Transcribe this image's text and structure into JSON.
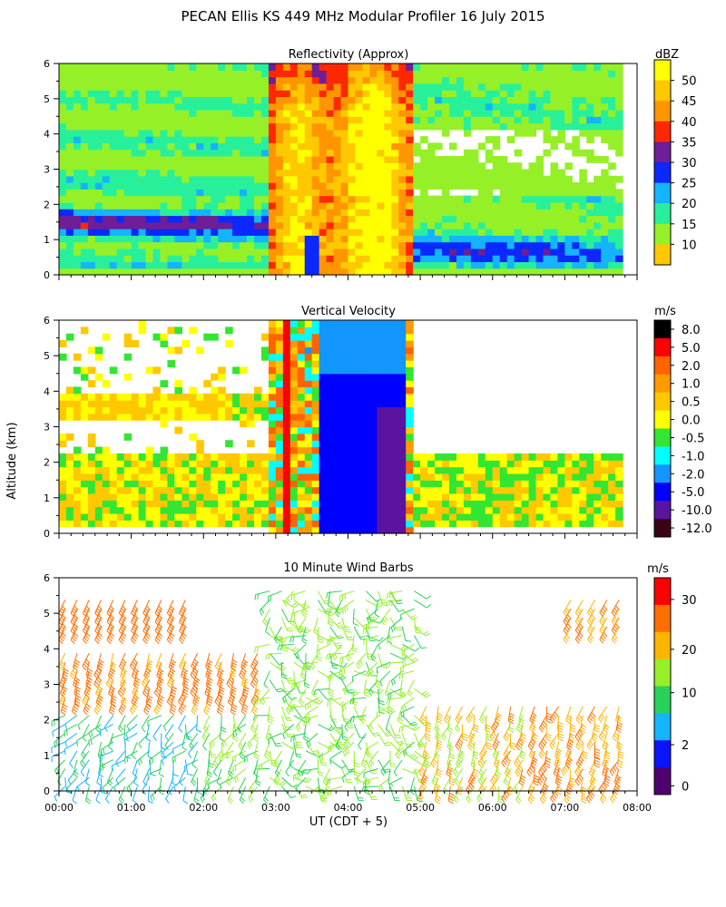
{
  "figure": {
    "title": "PECAN Ellis KS 449 MHz Modular Profiler 16 July 2015",
    "ylabel": "Altitude (km)",
    "xlabel": "UT  (CDT + 5)"
  },
  "chart_data": [
    {
      "type": "heatmap",
      "title": "Reflectivity (Approx)",
      "ylabel": "Altitude (km)",
      "y_ticks": [
        0,
        1,
        2,
        3,
        4,
        5,
        6
      ],
      "ylim": [
        0,
        6
      ],
      "colorbar": {
        "unit": "dBZ",
        "labels": [
          "50",
          "45",
          "40",
          "35",
          "30",
          "25",
          "20",
          "15",
          "10"
        ],
        "colors": [
          "#ffff00",
          "#ffc800",
          "#ff9600",
          "#ff2800",
          "#6e1e96",
          "#0a28ff",
          "#14b4ff",
          "#28f09a",
          "#96f028",
          "#ffc800"
        ]
      },
      "description_levels": "Reflectivity bands from ~10 dBZ near 4-6 km to 50+ dBZ in the convective core around 03:00-05:00 UT"
    },
    {
      "type": "heatmap",
      "title": "Vertical Velocity",
      "ylabel": "Altitude (km)",
      "y_ticks": [
        0,
        1,
        2,
        3,
        4,
        5,
        6
      ],
      "ylim": [
        0,
        6
      ],
      "colorbar": {
        "unit": "m/s",
        "labels": [
          "8.0",
          "5.0",
          "2.0",
          "1.0",
          "0.5",
          "0.0",
          "-0.5",
          "-1.0",
          "-2.0",
          "-5.0",
          "-10.0",
          "-12.0"
        ],
        "colors": [
          "#000000",
          "#ff0000",
          "#ff6400",
          "#ff9a00",
          "#ffc800",
          "#ffff00",
          "#32e632",
          "#00ffff",
          "#1496ff",
          "#0000ff",
          "#5a14a0",
          "#3c0014"
        ]
      }
    },
    {
      "type": "scatter",
      "title": "10 Minute Wind Barbs",
      "ylabel": "Altitude (km)",
      "y_ticks": [
        0,
        1,
        2,
        3,
        4,
        5,
        6
      ],
      "ylim": [
        0,
        6
      ],
      "x_ticks": [
        "00:00",
        "01:00",
        "02:00",
        "03:00",
        "04:00",
        "05:00",
        "06:00",
        "07:00",
        "08:00"
      ],
      "xlim": [
        "00:00",
        "08:00"
      ],
      "colorbar": {
        "unit": "m/s",
        "labels": [
          "30",
          "20",
          "10",
          "2",
          "0"
        ],
        "colors": [
          "#ff0000",
          "#ff6e00",
          "#ffb400",
          "#96f028",
          "#28d25a",
          "#14b4ff",
          "#0a14ff",
          "#50006e"
        ]
      }
    }
  ]
}
